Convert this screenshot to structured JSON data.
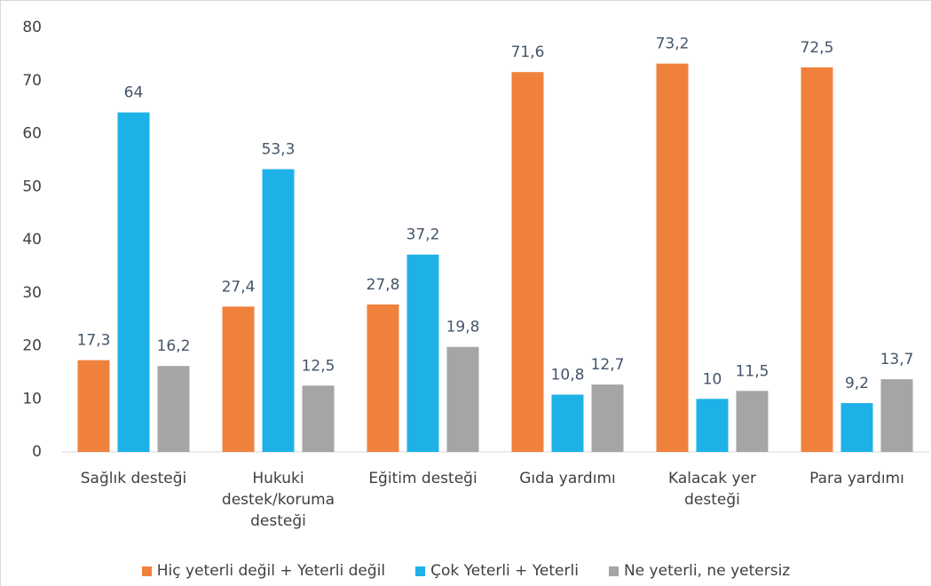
{
  "chart_data": {
    "type": "bar",
    "categories": [
      "Sağlık desteği",
      "Hukuki destek/koruma desteği",
      "Eğitim desteği",
      "Gıda yardımı",
      "Kalacak yer desteği",
      "Para yardımı"
    ],
    "series": [
      {
        "name": "Hiç yeterli değil + Yeterli değil",
        "color": "#f0813c",
        "values": [
          17.3,
          27.4,
          27.8,
          71.6,
          73.2,
          72.5
        ],
        "value_labels": [
          "17,3",
          "27,4",
          "27,8",
          "71,6",
          "73,2",
          "72,5"
        ]
      },
      {
        "name": "Çok Yeterli + Yeterli",
        "color": "#1eb1e7",
        "values": [
          64,
          53.3,
          37.2,
          10.8,
          10,
          9.2
        ],
        "value_labels": [
          "64",
          "53,3",
          "37,2",
          "10,8",
          "10",
          "9,2"
        ]
      },
      {
        "name": "Ne yeterli, ne yetersiz",
        "color": "#a5a5a5",
        "values": [
          16.2,
          12.5,
          19.8,
          12.7,
          11.5,
          13.7
        ],
        "value_labels": [
          "16,2",
          "12,5",
          "19,8",
          "12,7",
          "11,5",
          "13,7"
        ]
      }
    ],
    "ylim": [
      0,
      80
    ],
    "yticks": [
      0,
      10,
      20,
      30,
      40,
      50,
      60,
      70,
      80
    ],
    "grid": false,
    "legend": "bottom"
  }
}
